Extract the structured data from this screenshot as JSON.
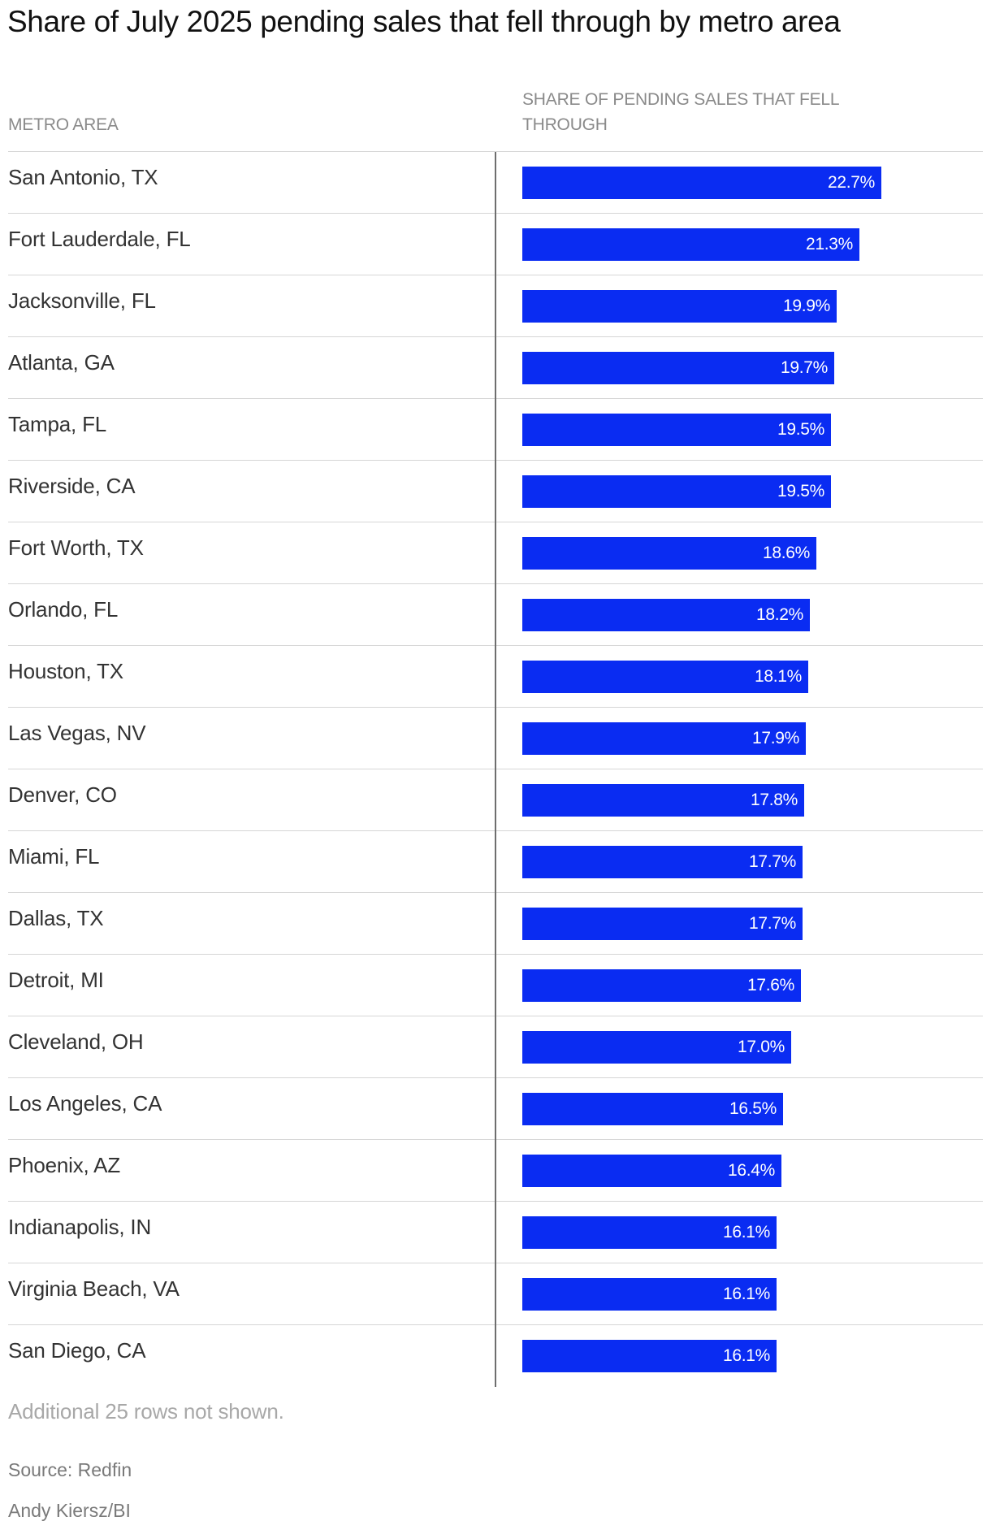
{
  "chart_data": {
    "type": "bar",
    "title": "Share of July 2025 pending sales that fell through by metro area",
    "column_headers": {
      "category": "METRO AREA",
      "value": "SHARE OF PENDING SALES THAT FELL THROUGH"
    },
    "xlim": [
      0,
      22.7
    ],
    "bar_color": "#0a2cf2",
    "rows": [
      {
        "metro": "San Antonio, TX",
        "value": 22.7,
        "label": "22.7%"
      },
      {
        "metro": "Fort Lauderdale, FL",
        "value": 21.3,
        "label": "21.3%"
      },
      {
        "metro": "Jacksonville, FL",
        "value": 19.9,
        "label": "19.9%"
      },
      {
        "metro": "Atlanta, GA",
        "value": 19.7,
        "label": "19.7%"
      },
      {
        "metro": "Tampa, FL",
        "value": 19.5,
        "label": "19.5%"
      },
      {
        "metro": "Riverside, CA",
        "value": 19.5,
        "label": "19.5%"
      },
      {
        "metro": "Fort Worth, TX",
        "value": 18.6,
        "label": "18.6%"
      },
      {
        "metro": "Orlando, FL",
        "value": 18.2,
        "label": "18.2%"
      },
      {
        "metro": "Houston, TX",
        "value": 18.1,
        "label": "18.1%"
      },
      {
        "metro": "Las Vegas, NV",
        "value": 17.9,
        "label": "17.9%"
      },
      {
        "metro": "Denver, CO",
        "value": 17.8,
        "label": "17.8%"
      },
      {
        "metro": "Miami, FL",
        "value": 17.7,
        "label": "17.7%"
      },
      {
        "metro": "Dallas, TX",
        "value": 17.7,
        "label": "17.7%"
      },
      {
        "metro": "Detroit, MI",
        "value": 17.6,
        "label": "17.6%"
      },
      {
        "metro": "Cleveland, OH",
        "value": 17.0,
        "label": "17.0%"
      },
      {
        "metro": "Los Angeles, CA",
        "value": 16.5,
        "label": "16.5%"
      },
      {
        "metro": "Phoenix, AZ",
        "value": 16.4,
        "label": "16.4%"
      },
      {
        "metro": "Indianapolis, IN",
        "value": 16.1,
        "label": "16.1%"
      },
      {
        "metro": "Virginia Beach, VA",
        "value": 16.1,
        "label": "16.1%"
      },
      {
        "metro": "San Diego, CA",
        "value": 16.1,
        "label": "16.1%"
      }
    ]
  },
  "footer": {
    "note": "Additional 25 rows not shown.",
    "source": "Source: Redfin",
    "credit": "Andy Kiersz/BI"
  }
}
